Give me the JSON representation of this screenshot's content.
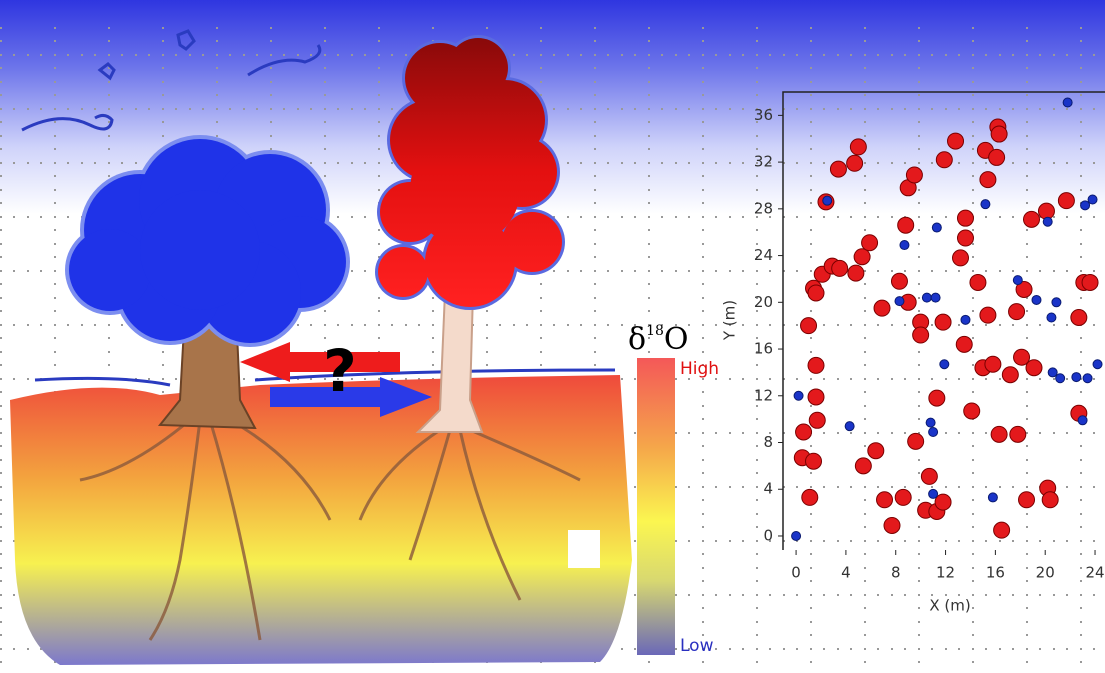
{
  "illustration": {
    "question_mark": "?",
    "colorbar": {
      "symbol": "δ",
      "isotope": "18",
      "element": "O",
      "high": "High",
      "low": "Low"
    }
  },
  "chart_data": {
    "type": "scatter",
    "xlabel": "X (m)",
    "ylabel": "Y (m)",
    "xlim": [
      -1.05,
      24.8
    ],
    "ylim": [
      -1.2,
      38
    ],
    "xticks": [
      0,
      4,
      8,
      12,
      16,
      20,
      24
    ],
    "yticks": [
      0,
      4,
      8,
      12,
      16,
      20,
      24,
      28,
      32,
      36
    ],
    "series": [
      {
        "color": "#e3191c",
        "x": [
          0.5,
          0.6,
          1.1,
          1,
          1.4,
          1.6,
          1.6,
          1.7,
          1.4,
          1.6,
          2.4,
          2.1,
          2.9,
          3.5,
          3.4,
          4.7,
          5,
          4.8,
          5.3,
          5.9,
          5.4,
          6.4,
          6.9,
          7.1,
          7.7,
          8.6,
          8.3,
          9,
          9,
          9.5,
          8.8,
          10,
          10,
          9.6,
          10.4,
          10.7,
          11.3,
          11.8,
          11.3,
          11.8,
          11.9,
          12.8,
          13.2,
          13.6,
          13.6,
          13.5,
          14.1,
          14.6,
          15,
          15.4,
          15.8,
          15.2,
          15.4,
          16.1,
          16.2,
          16.3,
          16.3,
          16.5,
          17.8,
          17.7,
          17.2,
          18.3,
          18.5,
          18.9,
          18.1,
          19.1,
          20.1,
          20.2,
          20.4,
          21.7,
          22.7,
          22.7,
          23.1,
          23.6
        ],
        "y": [
          6.7,
          8.9,
          3.3,
          18,
          21.2,
          20.8,
          11.9,
          9.9,
          6.4,
          14.6,
          28.6,
          22.4,
          23.1,
          22.9,
          31.4,
          31.9,
          33.3,
          22.5,
          23.9,
          25.1,
          6,
          7.3,
          19.5,
          3.1,
          0.9,
          3.3,
          21.8,
          20,
          29.8,
          30.9,
          26.6,
          18.3,
          17.2,
          8.1,
          2.2,
          5.1,
          2.1,
          2.9,
          11.8,
          18.3,
          32.2,
          33.8,
          23.8,
          25.5,
          27.2,
          16.4,
          10.7,
          21.7,
          14.4,
          18.9,
          14.7,
          33,
          30.5,
          32.4,
          35,
          34.4,
          8.7,
          0.5,
          8.7,
          19.2,
          13.8,
          21.1,
          3.1,
          27.1,
          15.3,
          14.4,
          27.8,
          4.1,
          3.1,
          28.7,
          18.7,
          10.5,
          21.7,
          21.7
        ]
      },
      {
        "color": "#1a34c8",
        "x": [
          0,
          0.2,
          2.5,
          4.3,
          8.3,
          8.7,
          10.5,
          10.8,
          11,
          11,
          11.3,
          11.2,
          11.9,
          13.6,
          15.2,
          15.8,
          17.8,
          19.3,
          20.9,
          20.5,
          20.6,
          21.2,
          21.8,
          22.5,
          23.4,
          23.2,
          23.8,
          23,
          24.2,
          20.2
        ],
        "y": [
          0,
          12,
          28.7,
          9.4,
          20.1,
          24.9,
          20.4,
          9.7,
          8.9,
          3.6,
          26.4,
          20.4,
          14.7,
          18.5,
          28.4,
          3.3,
          21.9,
          20.2,
          20,
          18.7,
          14,
          13.5,
          37.1,
          13.6,
          13.5,
          28.3,
          28.8,
          9.9,
          14.7,
          26.9
        ]
      }
    ]
  }
}
